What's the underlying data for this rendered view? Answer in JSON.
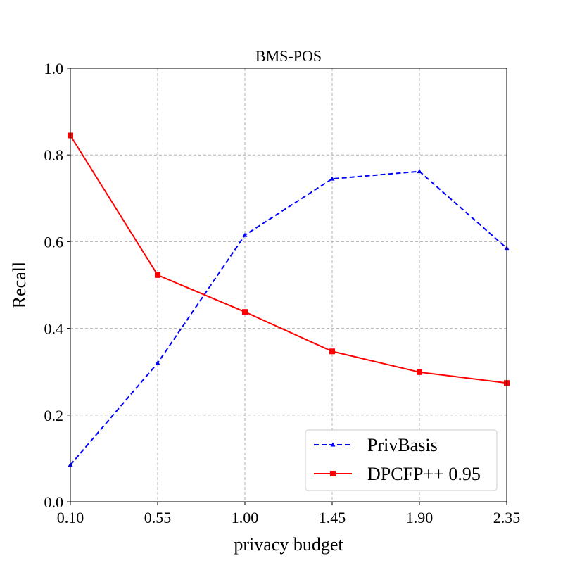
{
  "chart_data": {
    "type": "line",
    "title": "BMS-POS",
    "xlabel": "privacy budget",
    "ylabel": "Recall",
    "categories": [
      "0.10",
      "0.55",
      "1.00",
      "1.45",
      "1.90",
      "2.35"
    ],
    "ylim": [
      0,
      1
    ],
    "yticks": [
      "0.0",
      "0.2",
      "0.4",
      "0.6",
      "0.8",
      "1.0"
    ],
    "grid": true,
    "legend_position": "bottom-right",
    "series": [
      {
        "name": "PrivBasis",
        "values": [
          0.085,
          0.32,
          0.615,
          0.745,
          0.762,
          0.585
        ],
        "color": "#0000ff",
        "line_style": "dashed",
        "marker": "triangle"
      },
      {
        "name": "DPCFP++ 0.95",
        "values": [
          0.845,
          0.523,
          0.438,
          0.347,
          0.299,
          0.274
        ],
        "color": "#ff0000",
        "line_style": "solid",
        "marker": "square"
      }
    ]
  }
}
